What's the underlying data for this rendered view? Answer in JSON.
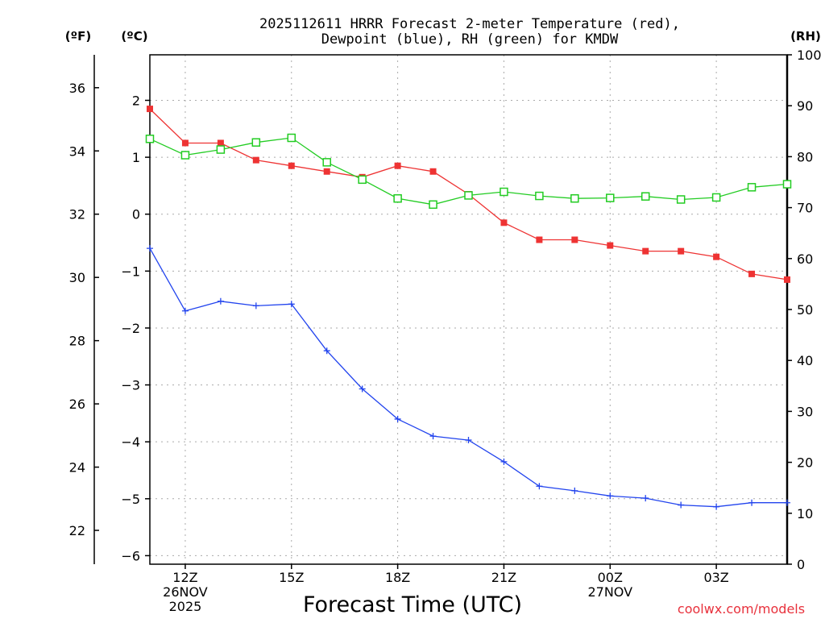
{
  "chart_data": {
    "type": "line",
    "title_lines": [
      "2025112611 HRRR Forecast 2-meter Temperature (red),",
      "Dewpoint (blue), RH (green) for KMDW"
    ],
    "xlabel": "Forecast Time (UTC)",
    "credit": "coolwx.com/models",
    "x_hours": [
      11,
      12,
      13,
      14,
      15,
      16,
      17,
      18,
      19,
      20,
      21,
      22,
      23,
      24,
      25,
      26,
      27,
      28,
      29
    ],
    "x_ticks": [
      {
        "hour": 12,
        "lines": [
          "12Z",
          "26NOV",
          "2025"
        ]
      },
      {
        "hour": 15,
        "lines": [
          "15Z"
        ]
      },
      {
        "hour": 18,
        "lines": [
          "18Z"
        ]
      },
      {
        "hour": 21,
        "lines": [
          "21Z"
        ]
      },
      {
        "hour": 24,
        "lines": [
          "00Z",
          "27NOV"
        ]
      },
      {
        "hour": 27,
        "lines": [
          "03Z"
        ]
      }
    ],
    "xlim": [
      11,
      29
    ],
    "axes": {
      "celsius": {
        "label": "(ºC)",
        "ylim": [
          -6.15,
          2.8
        ],
        "ticks": [
          2,
          1,
          0,
          -1,
          -2,
          -3,
          -4,
          -5,
          -6
        ],
        "tick_labels": [
          "2",
          "1",
          "0",
          "−1",
          "−2",
          "−3",
          "−4",
          "−5",
          "−6"
        ]
      },
      "fahrenheit": {
        "label": "(ºF)",
        "ticks": [
          36,
          34,
          32,
          30,
          28,
          26,
          24,
          22
        ],
        "tick_labels": [
          "36",
          "34",
          "32",
          "30",
          "28",
          "26",
          "24",
          "22"
        ]
      },
      "rh": {
        "label": "(RH)",
        "ylim": [
          0,
          100
        ],
        "ticks": [
          100,
          90,
          80,
          70,
          60,
          50,
          40,
          30,
          20,
          10,
          0
        ],
        "tick_labels": [
          "100",
          "90",
          "80",
          "70",
          "60",
          "50",
          "40",
          "30",
          "20",
          "10",
          "0"
        ]
      }
    },
    "series": [
      {
        "name": "2-meter Temperature",
        "axis": "celsius",
        "color": "#ee3333",
        "marker": "filled-square",
        "values": [
          1.85,
          1.25,
          1.25,
          0.95,
          0.85,
          0.75,
          0.65,
          0.85,
          0.75,
          0.35,
          -0.15,
          -0.45,
          -0.45,
          -0.55,
          -0.65,
          -0.65,
          -0.75,
          -1.05,
          -1.15
        ]
      },
      {
        "name": "Dewpoint",
        "axis": "celsius",
        "color": "#2244ee",
        "marker": "plus",
        "values": [
          -0.6,
          -1.7,
          -1.53,
          -1.61,
          -1.58,
          -2.4,
          -3.07,
          -3.6,
          -3.9,
          -3.97,
          -4.35,
          -4.78,
          -4.86,
          -4.95,
          -4.99,
          -5.11,
          -5.14,
          -5.07,
          -5.07
        ]
      },
      {
        "name": "RH",
        "axis": "rh",
        "color": "#22cc22",
        "marker": "open-square",
        "values": [
          83.5,
          80.3,
          81.4,
          82.8,
          83.7,
          78.9,
          75.5,
          71.8,
          70.6,
          72.4,
          73.1,
          72.3,
          71.8,
          71.9,
          72.2,
          71.6,
          72.0,
          74.0,
          74.6
        ]
      }
    ]
  }
}
